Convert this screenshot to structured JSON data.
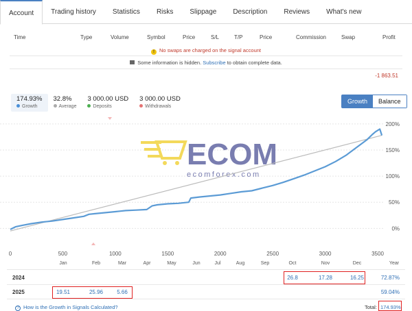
{
  "tabs": [
    "Account",
    "Trading history",
    "Statistics",
    "Risks",
    "Slippage",
    "Description",
    "Reviews",
    "What's new"
  ],
  "table": {
    "columns": [
      "Time",
      "Type",
      "Volume",
      "Symbol",
      "Price",
      "S/L",
      "T/P",
      "Price",
      "Commission",
      "Swap",
      "Profit"
    ],
    "swap_notice": "No swaps are charged on the signal account",
    "hidden_prefix": "Some information is hidden.",
    "hidden_link": "Subscribe",
    "hidden_suffix": "to obtain complete data.",
    "total_profit": "-1 863.51"
  },
  "stats": [
    {
      "value": "174.93%",
      "label": "Growth",
      "color": "#4a90d9"
    },
    {
      "value": "32.8%",
      "label": "Average",
      "color": "#aaaaaa"
    },
    {
      "value": "3 000.00 USD",
      "label": "Deposits",
      "color": "#4caf50"
    },
    {
      "value": "3 000.00 USD",
      "label": "Withdrawals",
      "color": "#e57373"
    }
  ],
  "toggle": {
    "growth": "Growth",
    "balance": "Balance"
  },
  "watermark": {
    "logo_text": "ECOM",
    "site": "ecomforex.com"
  },
  "chart_data": {
    "type": "line",
    "x_ticks": [
      0,
      500,
      1000,
      1500,
      2000,
      2500,
      3000,
      3500
    ],
    "y_ticks": [
      "0%",
      "50%",
      "100%",
      "150%",
      "200%"
    ],
    "xlim": [
      0,
      3500
    ],
    "ylim": [
      -10,
      205
    ],
    "series": [
      {
        "color": "#5b9bd5",
        "values": [
          [
            0,
            -2
          ],
          [
            50,
            3
          ],
          [
            120,
            6
          ],
          [
            200,
            9
          ],
          [
            300,
            12
          ],
          [
            400,
            14
          ],
          [
            500,
            17
          ],
          [
            600,
            20
          ],
          [
            700,
            23
          ],
          [
            750,
            27
          ],
          [
            800,
            28
          ],
          [
            900,
            30
          ],
          [
            1000,
            32
          ],
          [
            1050,
            33
          ],
          [
            1100,
            34
          ],
          [
            1200,
            35
          ],
          [
            1300,
            36
          ],
          [
            1350,
            43
          ],
          [
            1400,
            45
          ],
          [
            1500,
            47
          ],
          [
            1600,
            48
          ],
          [
            1700,
            50
          ],
          [
            1720,
            58
          ],
          [
            1800,
            60
          ],
          [
            1900,
            62
          ],
          [
            2000,
            64
          ],
          [
            2100,
            67
          ],
          [
            2200,
            70
          ],
          [
            2300,
            72
          ],
          [
            2400,
            77
          ],
          [
            2500,
            82
          ],
          [
            2600,
            88
          ],
          [
            2700,
            95
          ],
          [
            2800,
            102
          ],
          [
            2900,
            110
          ],
          [
            3000,
            118
          ],
          [
            3100,
            128
          ],
          [
            3200,
            140
          ],
          [
            3300,
            155
          ],
          [
            3400,
            170
          ],
          [
            3450,
            180
          ],
          [
            3480,
            185
          ],
          [
            3520,
            190
          ],
          [
            3540,
            178
          ]
        ]
      },
      {
        "color": "#bbbbbb",
        "values": [
          [
            0,
            -5
          ],
          [
            3540,
            178
          ]
        ]
      }
    ]
  },
  "months": [
    "Jan",
    "Feb",
    "Mar",
    "Apr",
    "May",
    "Jun",
    "Jul",
    "Aug",
    "Sep",
    "Oct",
    "Nov",
    "Dec",
    "Year"
  ],
  "years": [
    {
      "year": "2024",
      "values": [
        "",
        "",
        "",
        "",
        "",
        "",
        "",
        "",
        "",
        "26.8",
        "17.28",
        "16.25"
      ],
      "total": "72.87%"
    },
    {
      "year": "2025",
      "values": [
        "19.51",
        "25.96",
        "5.66",
        "",
        "",
        "",
        "",
        "",
        "",
        "",
        "",
        ""
      ],
      "total": "59.04%"
    }
  ],
  "footer": {
    "help": "How is the Growth in Signals Calculated?",
    "total_label": "Total:",
    "total_value": "174.93%"
  }
}
